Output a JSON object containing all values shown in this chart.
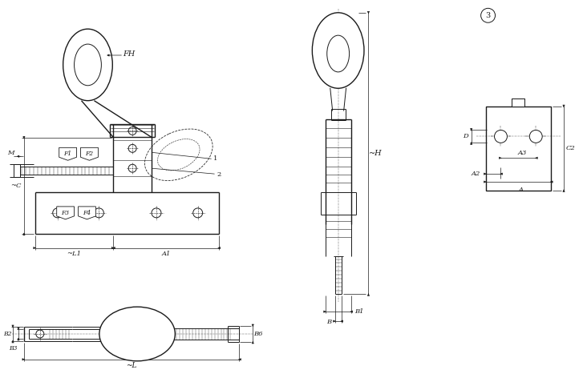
{
  "bg_color": "#ffffff",
  "line_color": "#1a1a1a",
  "lw": 0.7,
  "lw_thick": 1.0,
  "lw_dim": 0.5,
  "lw_thin": 0.4,
  "labels": {
    "FH": "FH",
    "F1": "F1",
    "F2": "F2",
    "F3": "F3",
    "F4": "F4",
    "M": "M",
    "C": "~C",
    "L1": "~L1",
    "A1": "A1",
    "H": "~H",
    "B": "B",
    "B1": "B1",
    "B2": "B2",
    "B3": "B3",
    "B6": "B6",
    "L": "~L",
    "A": "A",
    "A2": "A2",
    "A3": "A3",
    "D": "D",
    "C2": "C2",
    "note1": "1",
    "note2": "2",
    "view3": "3"
  },
  "fontsize": 6.0,
  "fontsize_small": 5.5
}
